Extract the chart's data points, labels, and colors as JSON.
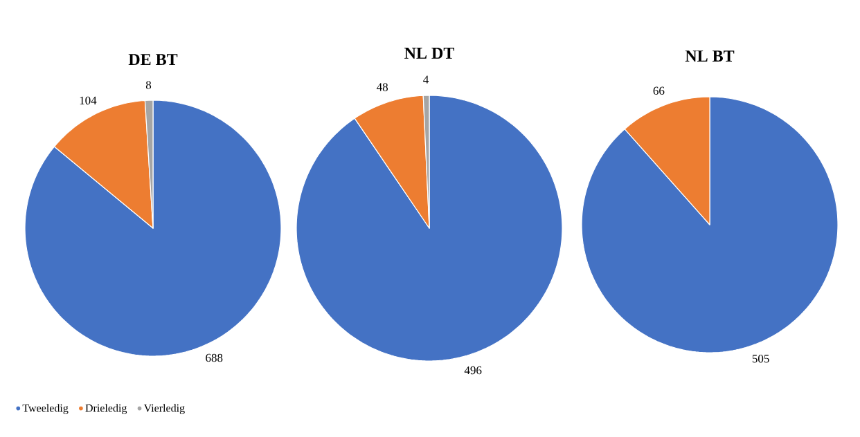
{
  "chart_data": [
    {
      "type": "pie",
      "title": "DE BT",
      "categories": [
        "Tweeledig",
        "Drieledig",
        "Vierledig"
      ],
      "values": [
        688,
        104,
        8
      ],
      "colors": [
        "#4472c4",
        "#ed7d31",
        "#a5a5a5"
      ],
      "data_labels": true,
      "legend": "bottom"
    },
    {
      "type": "pie",
      "title": "NL DT",
      "categories": [
        null,
        null,
        null
      ],
      "values": [
        496,
        48,
        4
      ],
      "colors": [
        "#4472c4",
        "#ed7d31",
        "#a5a5a5"
      ],
      "data_labels": true
    },
    {
      "type": "pie",
      "title": "NL BT",
      "categories": [
        null,
        null
      ],
      "values": [
        505,
        66
      ],
      "colors": [
        "#4472c4",
        "#ed7d31"
      ],
      "data_labels": true
    }
  ]
}
